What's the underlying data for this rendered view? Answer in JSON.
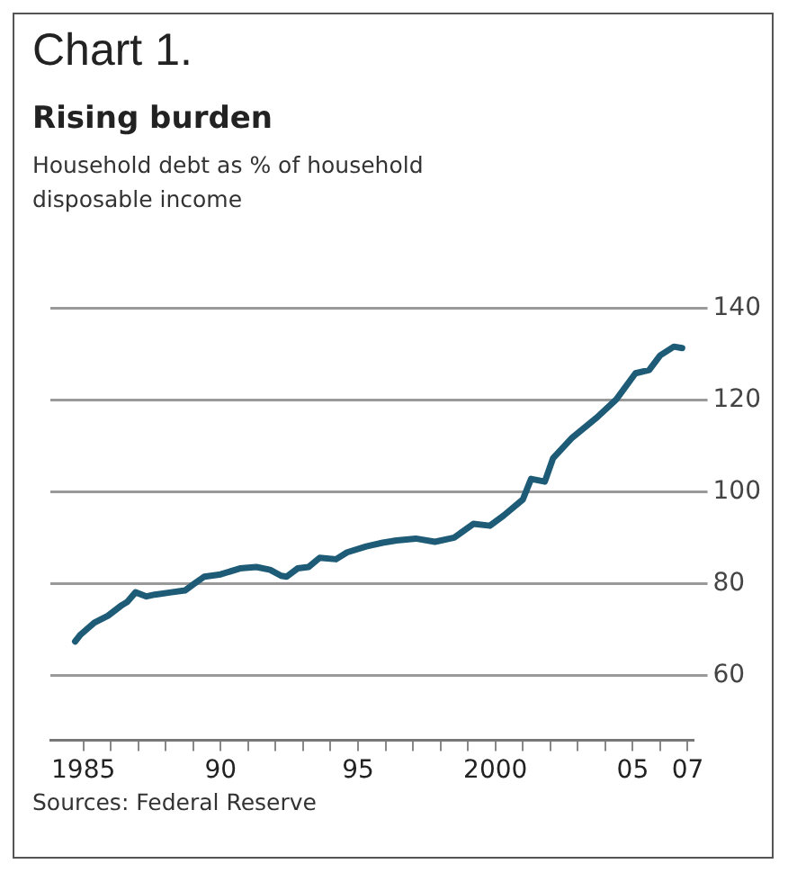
{
  "chart_data": {
    "type": "line",
    "title": "Rising burden",
    "subtitle": "Household debt as % of household disposable income",
    "annotations": [
      "Chart 1.",
      "Sources: Federal Reserve"
    ],
    "x": [
      1984.7,
      1984.9,
      1985.4,
      1985.9,
      1986.4,
      1986.6,
      1986.9,
      1987.3,
      1987.6,
      1988.2,
      1988.7,
      1989.0,
      1989.4,
      1990.0,
      1990.7,
      1991.3,
      1991.8,
      1992.2,
      1992.4,
      1992.8,
      1993.2,
      1993.6,
      1994.2,
      1994.6,
      1995.3,
      1995.9,
      1996.4,
      1997.1,
      1997.8,
      1998.5,
      1999.2,
      1999.8,
      2000.3,
      2001.0,
      2001.3,
      2001.8,
      2002.1,
      2002.8,
      2003.7,
      2004.4,
      2005.1,
      2005.6,
      2006.0,
      2006.5,
      2006.8
    ],
    "series": [
      {
        "color": "#1d5b76",
        "values": [
          67.5,
          69.0,
          71.6,
          73.1,
          75.4,
          76.1,
          78.2,
          77.3,
          77.7,
          78.2,
          78.6,
          79.9,
          81.6,
          82.1,
          83.4,
          83.7,
          83.1,
          81.8,
          81.6,
          83.4,
          83.7,
          85.7,
          85.4,
          86.9,
          88.2,
          89.0,
          89.5,
          89.9,
          89.2,
          90.1,
          93.1,
          92.7,
          94.9,
          98.4,
          102.9,
          102.3,
          107.4,
          111.9,
          116.3,
          120.2,
          125.9,
          126.6,
          129.8,
          131.7,
          131.4
        ]
      }
    ],
    "xlim": [
      1983.8,
      2007.2
    ],
    "xticks": [
      {
        "value": 1985,
        "label": "1985"
      },
      {
        "value": 1986,
        "label": null
      },
      {
        "value": 1987,
        "label": null
      },
      {
        "value": 1988,
        "label": null
      },
      {
        "value": 1989,
        "label": null
      },
      {
        "value": 1990,
        "label": "90"
      },
      {
        "value": 1991,
        "label": null
      },
      {
        "value": 1992,
        "label": null
      },
      {
        "value": 1993,
        "label": null
      },
      {
        "value": 1994,
        "label": null
      },
      {
        "value": 1995,
        "label": "95"
      },
      {
        "value": 1996,
        "label": null
      },
      {
        "value": 1997,
        "label": null
      },
      {
        "value": 1998,
        "label": null
      },
      {
        "value": 1999,
        "label": null
      },
      {
        "value": 2000,
        "label": "2000"
      },
      {
        "value": 2001,
        "label": null
      },
      {
        "value": 2002,
        "label": null
      },
      {
        "value": 2003,
        "label": null
      },
      {
        "value": 2004,
        "label": null
      },
      {
        "value": 2005,
        "label": "05"
      },
      {
        "value": 2006,
        "label": null
      },
      {
        "value": 2007,
        "label": "07"
      }
    ],
    "ylim": [
      46,
      140
    ],
    "yticks": [
      60,
      80,
      100,
      120,
      140
    ],
    "grid": "y",
    "legend": false,
    "marker": "none",
    "line_style": "solid"
  }
}
